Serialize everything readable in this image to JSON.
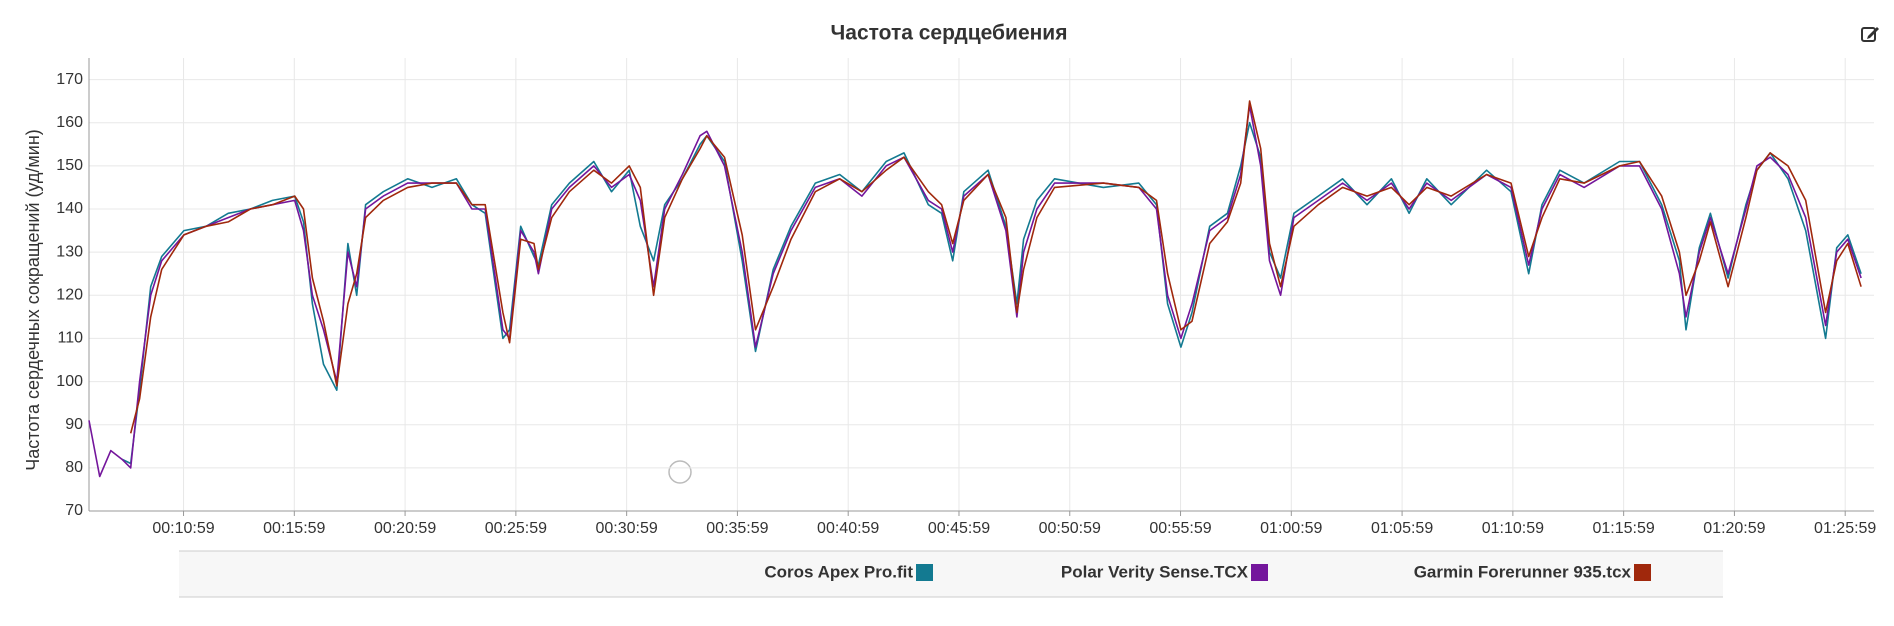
{
  "chart_data": {
    "type": "line",
    "title": "Частота сердцебиения",
    "y_label": "Частота сердечных сокращений (уд/мин)",
    "x": [
      403,
      432,
      462,
      492,
      516,
      540,
      570,
      600,
      660,
      720,
      780,
      840,
      900,
      960,
      984,
      1008,
      1038,
      1074,
      1104,
      1128,
      1152,
      1200,
      1266,
      1332,
      1398,
      1440,
      1476,
      1524,
      1542,
      1572,
      1608,
      1620,
      1656,
      1704,
      1770,
      1818,
      1866,
      1896,
      1932,
      1962,
      2010,
      2058,
      2076,
      2124,
      2172,
      2208,
      2256,
      2304,
      2370,
      2436,
      2496,
      2562,
      2610,
      2676,
      2712,
      2742,
      2772,
      2838,
      2886,
      2916,
      2934,
      2970,
      3018,
      3150,
      3246,
      3294,
      3324,
      3360,
      3390,
      3438,
      3486,
      3522,
      3546,
      3576,
      3600,
      3630,
      3666,
      3732,
      3798,
      3864,
      3930,
      3978,
      4026,
      4092,
      4188,
      4254,
      4302,
      4338,
      4386,
      4452,
      4548,
      4602,
      4662,
      4710,
      4728,
      4764,
      4794,
      4842,
      4890,
      4920,
      4956,
      5004,
      5052,
      5106,
      5136,
      5166,
      5202
    ],
    "series": [
      {
        "name": "Coros Apex Pro.fit",
        "color": "#137a91",
        "values": [
          null,
          null,
          null,
          82,
          81,
          98,
          122,
          129,
          135,
          136,
          139,
          140,
          142,
          143,
          137,
          118,
          104,
          98,
          132,
          120,
          141,
          144,
          147,
          145,
          147,
          141,
          139,
          110,
          112,
          136,
          129,
          127,
          141,
          146,
          151,
          144,
          149,
          136,
          128,
          141,
          147,
          155,
          157,
          151,
          128,
          107,
          126,
          136,
          146,
          148,
          144,
          151,
          153,
          141,
          139,
          128,
          144,
          149,
          136,
          118,
          133,
          142,
          147,
          145,
          146,
          141,
          118,
          108,
          116,
          136,
          139,
          150,
          160,
          152,
          130,
          124,
          139,
          143,
          147,
          141,
          147,
          139,
          147,
          141,
          149,
          144,
          125,
          141,
          149,
          146,
          151,
          151,
          141,
          128,
          112,
          131,
          139,
          124,
          141,
          149,
          153,
          147,
          135,
          110,
          131,
          134,
          125
        ]
      },
      {
        "name": "Polar Verity Sense.TCX",
        "color": "#74169c",
        "values": [
          91,
          78,
          84,
          82,
          80,
          100,
          120,
          128,
          134,
          136,
          138,
          140,
          141,
          142,
          135,
          120,
          112,
          100,
          130,
          122,
          140,
          143,
          146,
          146,
          146,
          140,
          140,
          112,
          110,
          135,
          130,
          125,
          140,
          145,
          150,
          145,
          148,
          142,
          122,
          140,
          148,
          157,
          158,
          150,
          130,
          108,
          125,
          135,
          145,
          147,
          143,
          150,
          152,
          142,
          140,
          130,
          143,
          148,
          135,
          115,
          130,
          140,
          146,
          146,
          145,
          140,
          120,
          110,
          118,
          135,
          138,
          148,
          164,
          150,
          128,
          120,
          138,
          142,
          146,
          142,
          146,
          140,
          146,
          142,
          148,
          145,
          127,
          140,
          148,
          145,
          150,
          150,
          140,
          125,
          115,
          130,
          138,
          125,
          140,
          150,
          152,
          148,
          138,
          113,
          130,
          133,
          124
        ]
      },
      {
        "name": "Garmin Forerunner 935.tcx",
        "color": "#a0280c",
        "values": [
          null,
          null,
          null,
          null,
          88,
          96,
          115,
          126,
          134,
          136,
          137,
          140,
          141,
          143,
          140,
          124,
          114,
          99,
          118,
          125,
          138,
          142,
          145,
          146,
          146,
          141,
          141,
          116,
          109,
          133,
          132,
          126,
          138,
          144,
          149,
          146,
          150,
          145,
          120,
          138,
          147,
          154,
          157,
          152,
          134,
          112,
          122,
          133,
          144,
          147,
          144,
          149,
          152,
          144,
          141,
          132,
          142,
          148,
          138,
          116,
          126,
          138,
          145,
          146,
          145,
          142,
          125,
          112,
          114,
          132,
          137,
          146,
          165,
          154,
          132,
          122,
          136,
          141,
          145,
          143,
          145,
          141,
          145,
          143,
          148,
          146,
          129,
          138,
          147,
          146,
          150,
          151,
          143,
          130,
          120,
          128,
          137,
          122,
          138,
          149,
          153,
          150,
          142,
          116,
          128,
          132,
          122
        ]
      }
    ],
    "xlim": [
      403,
      5237
    ],
    "xticks": [
      {
        "value": 659,
        "label": "00:10:59"
      },
      {
        "value": 959,
        "label": "00:15:59"
      },
      {
        "value": 1259,
        "label": "00:20:59"
      },
      {
        "value": 1559,
        "label": "00:25:59"
      },
      {
        "value": 1859,
        "label": "00:30:59"
      },
      {
        "value": 2159,
        "label": "00:35:59"
      },
      {
        "value": 2459,
        "label": "00:40:59"
      },
      {
        "value": 2759,
        "label": "00:45:59"
      },
      {
        "value": 3059,
        "label": "00:50:59"
      },
      {
        "value": 3359,
        "label": "00:55:59"
      },
      {
        "value": 3659,
        "label": "01:00:59"
      },
      {
        "value": 3959,
        "label": "01:05:59"
      },
      {
        "value": 4259,
        "label": "01:10:59"
      },
      {
        "value": 4559,
        "label": "01:15:59"
      },
      {
        "value": 4859,
        "label": "01:20:59"
      },
      {
        "value": 5159,
        "label": "01:25:59"
      }
    ],
    "ylim": [
      70,
      175
    ],
    "yticks": [
      70,
      80,
      90,
      100,
      110,
      120,
      130,
      140,
      150,
      160,
      170
    ],
    "grid": true,
    "legend": "bottom"
  }
}
